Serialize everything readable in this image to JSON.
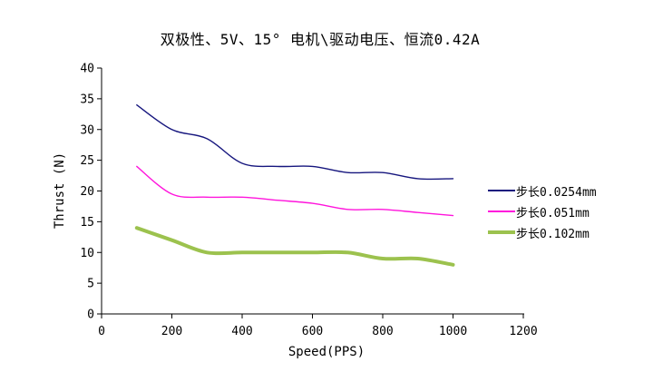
{
  "chart_data": {
    "type": "line",
    "title": "双极性、5V、15° 电机\\驱动电压、恒流0.42A",
    "xlabel": "Speed(PPS)",
    "ylabel": "Thrust (N)",
    "xlim": [
      0,
      1200
    ],
    "ylim": [
      0,
      40
    ],
    "xticks": [
      0,
      200,
      400,
      600,
      800,
      1000,
      1200
    ],
    "yticks": [
      0,
      5,
      10,
      15,
      20,
      25,
      30,
      35,
      40
    ],
    "grid": false,
    "legend_position": "right",
    "x": [
      100,
      200,
      300,
      400,
      500,
      600,
      700,
      800,
      900,
      1000
    ],
    "series": [
      {
        "name": "步长0.0254mm",
        "color": "#16167e",
        "line_width": 1.4,
        "values": [
          34,
          30,
          28.5,
          24.5,
          24,
          24,
          23,
          23,
          22,
          22
        ]
      },
      {
        "name": "步长0.051mm",
        "color": "#ff14dc",
        "line_width": 1.4,
        "values": [
          24,
          19.5,
          19,
          19,
          18.5,
          18,
          17,
          17,
          16.5,
          16
        ]
      },
      {
        "name": "步长0.102mm",
        "color": "#9cc24e",
        "line_width": 4,
        "values": [
          14,
          12,
          10,
          10,
          10,
          10,
          10,
          9,
          9,
          8
        ]
      }
    ],
    "axis_color": "#000000",
    "tick_font_size": 13
  }
}
